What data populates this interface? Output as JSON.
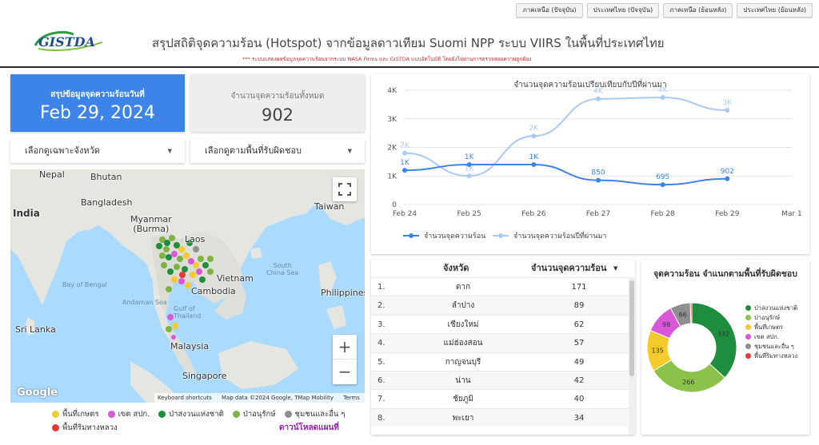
{
  "nav": {
    "buttons": [
      "ภาคเหนือ (ปัจจุบัน)",
      "ประเทศไทย (ปัจจุบัน)",
      "ภาคเหนือ (ย้อนหลัง)",
      "ประเทศไทย (ย้อนหลัง)"
    ]
  },
  "header": {
    "logo_text": "GISTDA",
    "title": "สรุปสถิติจุดความร้อน (Hotspot) จากข้อมูลดาวเทียม Suomi NPP ระบบ VIIRS  ในพื้นที่ประเทศไทย",
    "subtitle": "*** ระบบแสดงผลข้อมูลจุดความร้อนจากระบบ NASA Firms และ GISTDA แบบอัตโนมัติ โดยยังไม่ผ่านการตรวจสอบความถูกต้อง"
  },
  "kpi": {
    "today_label": "สรุปข้อมูลจุดความร้อนวันที่",
    "today_value": "Feb 29, 2024",
    "total_label": "จำนวนจุดความร้อนทั้งหมด",
    "total_value": "902"
  },
  "filters": {
    "province": "เลือกดูเฉพาะจังหวัด",
    "landuse": "เลือกดูตามพื้นที่รับผิดชอบ"
  },
  "map": {
    "labels": {
      "nepal": "Nepal",
      "bhutan": "Bhutan",
      "bangladesh": "Bangladesh",
      "india": "India",
      "myanmar": "Myanmar\n(Burma)",
      "laos": "Laos",
      "taiwan": "Taiwan",
      "vietnam": "Vietnam",
      "cambodia": "Cambodia",
      "philippines": "Philippines",
      "bay_of_bengal": "Bay of Bengal",
      "andaman_sea": "Andaman Sea",
      "south_china_sea": "South\nChina Sea",
      "gulf_of_thailand": "Gulf of\nThailand",
      "sri_lanka": "Sri Lanka",
      "malaysia": "Malaysia",
      "singapore": "Singapore"
    },
    "google": "Google",
    "attribution": [
      "Keyboard shortcuts",
      "Map data ©2024 Google, TMap Mobility",
      "Terms"
    ],
    "zoom_in": "+",
    "zoom_out": "−",
    "fullscreen_icon": "fullscreen-icon"
  },
  "map_legend": {
    "items": [
      {
        "label": "พื้นที่เกษตร",
        "color": "#f4cb2d"
      },
      {
        "label": "เขต สปก.",
        "color": "#d957d9"
      },
      {
        "label": "ป่าสงวนแห่งชาติ",
        "color": "#1e8e3e"
      },
      {
        "label": "ป่าอนุรักษ์",
        "color": "#7cb342"
      },
      {
        "label": "ชุมชนและอื่น ๆ",
        "color": "#8f8f8f"
      },
      {
        "label": "พื้นที่ริมทางหลวง",
        "color": "#e53935"
      }
    ],
    "download": "ดาวน์โหลดแผนที่"
  },
  "line_chart": {
    "title": "จำนวนจุดความร้อนเปรียบเทียบกับปีที่ผ่านมา",
    "x_ticks": [
      "Feb 24",
      "Feb 25",
      "Feb 26",
      "Feb 27",
      "Feb 28",
      "Feb 29",
      "Mar 1"
    ],
    "y_ticks": [
      "0",
      "1K",
      "2K",
      "3K",
      "4K"
    ],
    "legend_current": "จำนวนจุดความร้อน",
    "legend_previous": "จำนวนจุดความร้อนปีที่ผ่านมา"
  },
  "chart_data": [
    {
      "type": "line",
      "title": "จำนวนจุดความร้อนเปรียบเทียบกับปีที่ผ่านมา",
      "x": [
        "Feb 24",
        "Feb 25",
        "Feb 26",
        "Feb 27",
        "Feb 28",
        "Feb 29"
      ],
      "ylim": [
        0,
        4000
      ],
      "series": [
        {
          "name": "จำนวนจุดความร้อน",
          "values": [
            1200,
            1400,
            1400,
            850,
            695,
            902
          ],
          "labels": [
            "1K",
            "1K",
            "1K",
            "850",
            "695",
            "902"
          ],
          "color": "#3d84e8"
        },
        {
          "name": "จำนวนจุดความร้อนปีที่ผ่านมา",
          "values": [
            1800,
            1000,
            2400,
            3700,
            3750,
            3300
          ],
          "labels": [
            "2K",
            "1K",
            "2K",
            "4K",
            "4K",
            "3K"
          ],
          "color": "#a9c9f5"
        }
      ],
      "grid": true,
      "legend": "bottom"
    },
    {
      "type": "pie",
      "title": "จุดความร้อน จำแนกตามพื้นที่รับผิดชอบ",
      "slices": [
        {
          "label": "ป่าสงวนแห่งชาติ",
          "value": 332,
          "color": "#1e8e3e"
        },
        {
          "label": "ป่าอนุรักษ์",
          "value": 266,
          "color": "#8bc34a"
        },
        {
          "label": "พื้นที่เกษตร",
          "value": 135,
          "color": "#f4cb2d"
        },
        {
          "label": "เขต สปก.",
          "value": 98,
          "color": "#d957d9"
        },
        {
          "label": "ชุมชนและอื่น ๆ",
          "value": 66,
          "color": "#8f8f8f"
        },
        {
          "label": "พื้นที่ริมทางหลวง",
          "value": 5,
          "color": "#e53935"
        }
      ]
    }
  ],
  "table": {
    "col_province": "จังหวัด",
    "col_count": "จำนวนจุดความร้อน",
    "sort_icon": "sort-desc-icon",
    "rows": [
      {
        "rank": "1.",
        "province": "ตาก",
        "count": "171"
      },
      {
        "rank": "2.",
        "province": "ลำปาง",
        "count": "89"
      },
      {
        "rank": "3.",
        "province": "เชียงใหม่",
        "count": "62"
      },
      {
        "rank": "4.",
        "province": "แม่ฮ่องสอน",
        "count": "57"
      },
      {
        "rank": "5.",
        "province": "กาญจนบุรี",
        "count": "49"
      },
      {
        "rank": "6.",
        "province": "น่าน",
        "count": "42"
      },
      {
        "rank": "7.",
        "province": "ชัยภูมิ",
        "count": "40"
      },
      {
        "rank": "8.",
        "province": "พะเยา",
        "count": "34"
      }
    ]
  },
  "donut": {
    "title": "จุดความร้อน จำแนกตามพื้นที่รับผิดชอบ"
  }
}
